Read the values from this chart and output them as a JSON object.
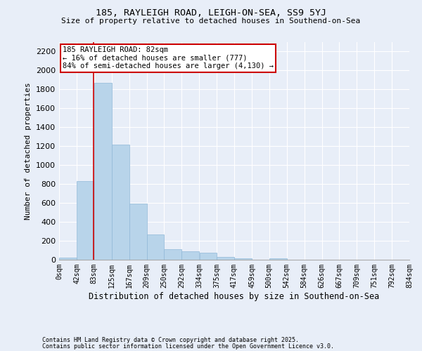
{
  "title": "185, RAYLEIGH ROAD, LEIGH-ON-SEA, SS9 5YJ",
  "subtitle": "Size of property relative to detached houses in Southend-on-Sea",
  "xlabel": "Distribution of detached houses by size in Southend-on-Sea",
  "ylabel": "Number of detached properties",
  "bar_color": "#b8d4ea",
  "bar_edge_color": "#90b8d8",
  "background_color": "#e8eef8",
  "grid_color": "#ffffff",
  "annotation_line_color": "#cc0000",
  "annotation_box_color": "#cc0000",
  "annotation_text": "185 RAYLEIGH ROAD: 82sqm\n← 16% of detached houses are smaller (777)\n84% of semi-detached houses are larger (4,130) →",
  "property_size": 82,
  "bin_edges": [
    0,
    42,
    83,
    125,
    167,
    209,
    250,
    292,
    334,
    375,
    417,
    459,
    500,
    542,
    584,
    626,
    667,
    709,
    751,
    792,
    834
  ],
  "bin_labels": [
    "0sqm",
    "42sqm",
    "83sqm",
    "125sqm",
    "167sqm",
    "209sqm",
    "250sqm",
    "292sqm",
    "334sqm",
    "375sqm",
    "417sqm",
    "459sqm",
    "500sqm",
    "542sqm",
    "584sqm",
    "626sqm",
    "667sqm",
    "709sqm",
    "751sqm",
    "792sqm",
    "834sqm"
  ],
  "counts": [
    20,
    830,
    1870,
    1220,
    590,
    265,
    115,
    90,
    75,
    30,
    15,
    0,
    15,
    0,
    0,
    0,
    0,
    0,
    0,
    0
  ],
  "ylim": [
    0,
    2300
  ],
  "yticks": [
    0,
    200,
    400,
    600,
    800,
    1000,
    1200,
    1400,
    1600,
    1800,
    2000,
    2200
  ],
  "footnote1": "Contains HM Land Registry data © Crown copyright and database right 2025.",
  "footnote2": "Contains public sector information licensed under the Open Government Licence v3.0."
}
